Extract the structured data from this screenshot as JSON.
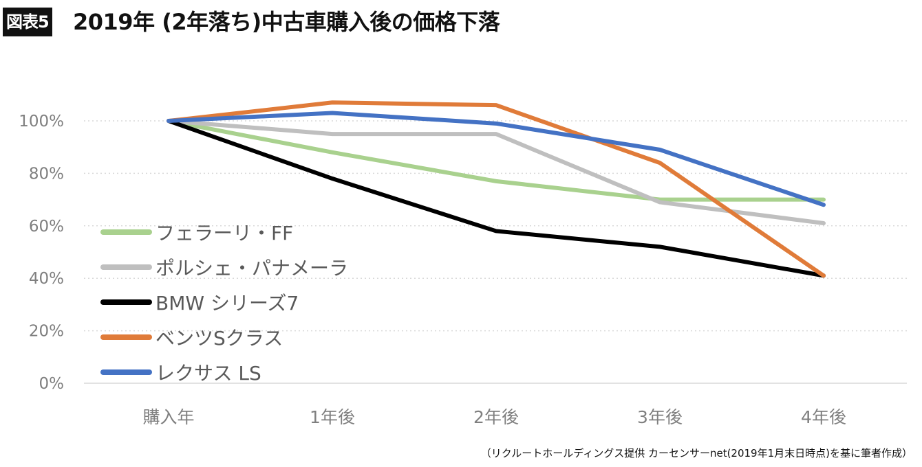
{
  "header": {
    "badge": "図表5",
    "title": "2019年 (2年落ち)中古車購入後の価格下落"
  },
  "footnote": "（リクルートホールディングス提供 カーセンサーnet(2019年1月末日時点)を基に筆者作成）",
  "chart_data": {
    "type": "line",
    "title": "2019年 (2年落ち)中古車購入後の価格下落",
    "categories": [
      "購入年",
      "1年後",
      "2年後",
      "3年後",
      "4年後"
    ],
    "ylim": [
      0,
      100
    ],
    "yticks": [
      "0%",
      "20%",
      "40%",
      "60%",
      "80%",
      "100%"
    ],
    "ytick_values": [
      0,
      20,
      40,
      60,
      80,
      100
    ],
    "grid": "horizontal dotted",
    "legend_position": "left, inside plot",
    "series": [
      {
        "name": "フェラーリ・FF",
        "color": "#a9d18e",
        "values": [
          100,
          88,
          77,
          70,
          70
        ]
      },
      {
        "name": "ポルシェ・パナメーラ",
        "color": "#bfbfbf",
        "values": [
          100,
          95,
          95,
          69,
          61
        ]
      },
      {
        "name": "BMW シリーズ7",
        "color": "#000000",
        "values": [
          100,
          78,
          58,
          52,
          41
        ]
      },
      {
        "name": "ベンツSクラス",
        "color": "#e07b39",
        "values": [
          100,
          107,
          106,
          84,
          41
        ]
      },
      {
        "name": "レクサス LS",
        "color": "#4472c4",
        "values": [
          100,
          103,
          99,
          89,
          68
        ]
      }
    ]
  }
}
